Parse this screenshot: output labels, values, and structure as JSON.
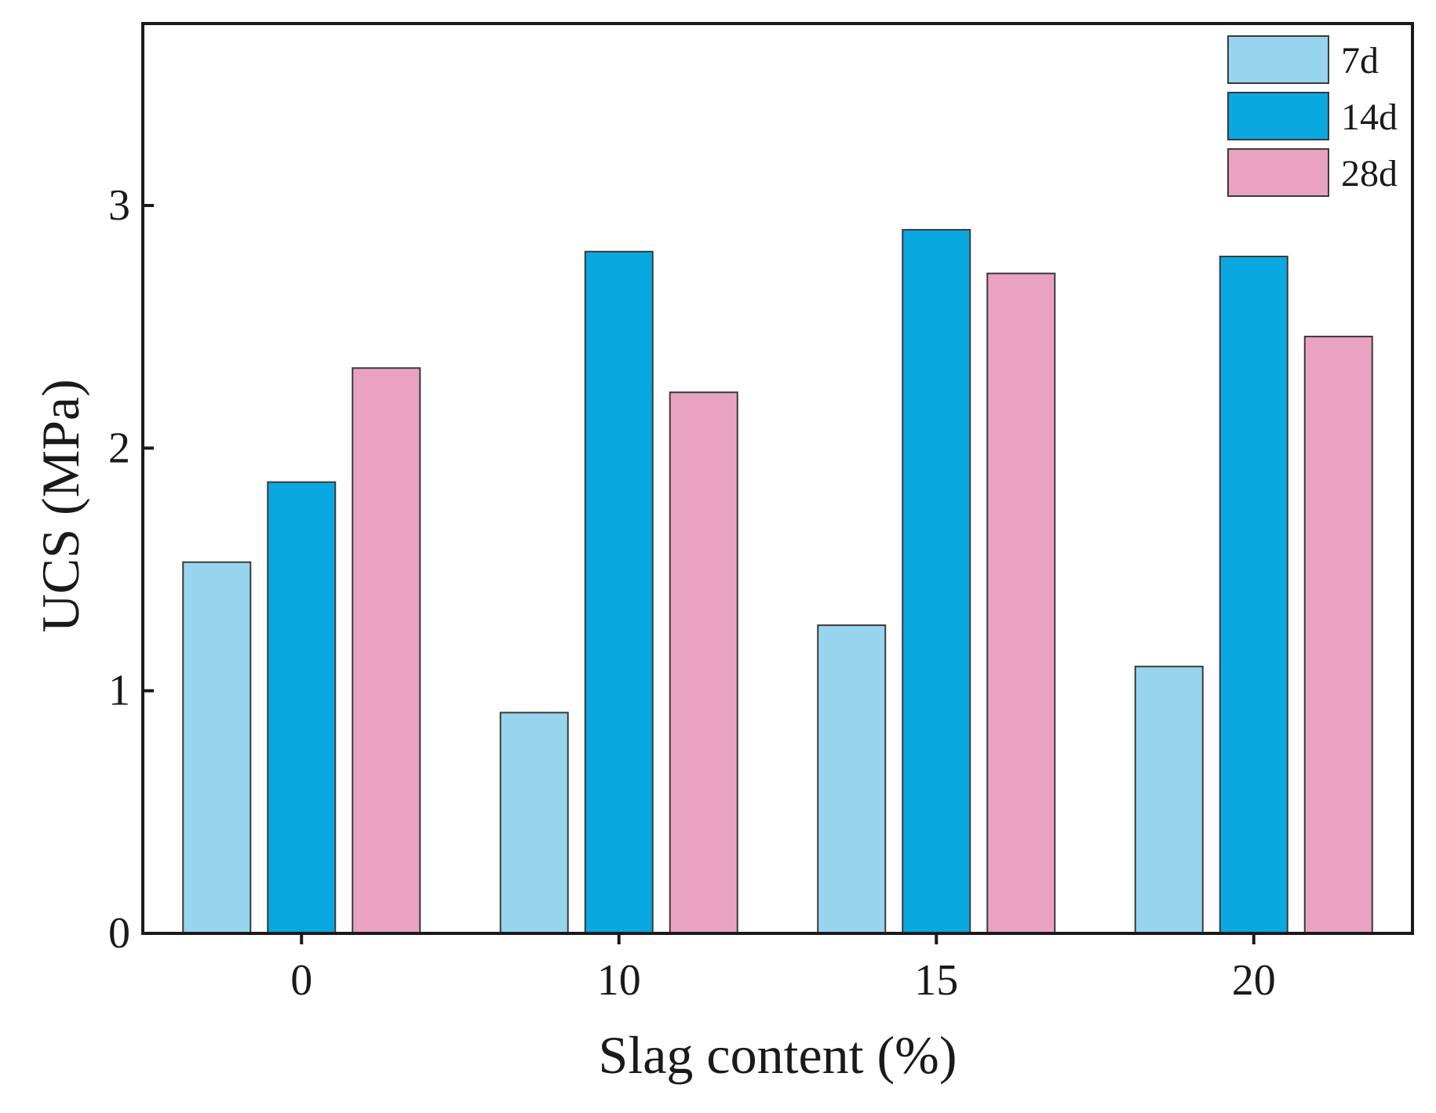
{
  "chart_data": {
    "type": "bar",
    "title": "",
    "xlabel": "Slag content (%)",
    "ylabel": "UCS (MPa)",
    "categories": [
      "0",
      "10",
      "15",
      "20"
    ],
    "ylim": [
      0,
      3.75
    ],
    "yticks": [
      0,
      1,
      2,
      3
    ],
    "ytick_labels": [
      "0",
      "1",
      "2",
      "3"
    ],
    "grid": false,
    "legend_position": "top-right",
    "series": [
      {
        "name": "7d",
        "color": "#97d5ef",
        "values": [
          1.53,
          0.91,
          1.27,
          1.1
        ]
      },
      {
        "name": "14d",
        "color": "#0aa8e0",
        "values": [
          1.86,
          2.81,
          2.9,
          2.79
        ]
      },
      {
        "name": "28d",
        "color": "#e9a3c0",
        "values": [
          2.33,
          2.23,
          2.72,
          2.46
        ]
      }
    ]
  }
}
